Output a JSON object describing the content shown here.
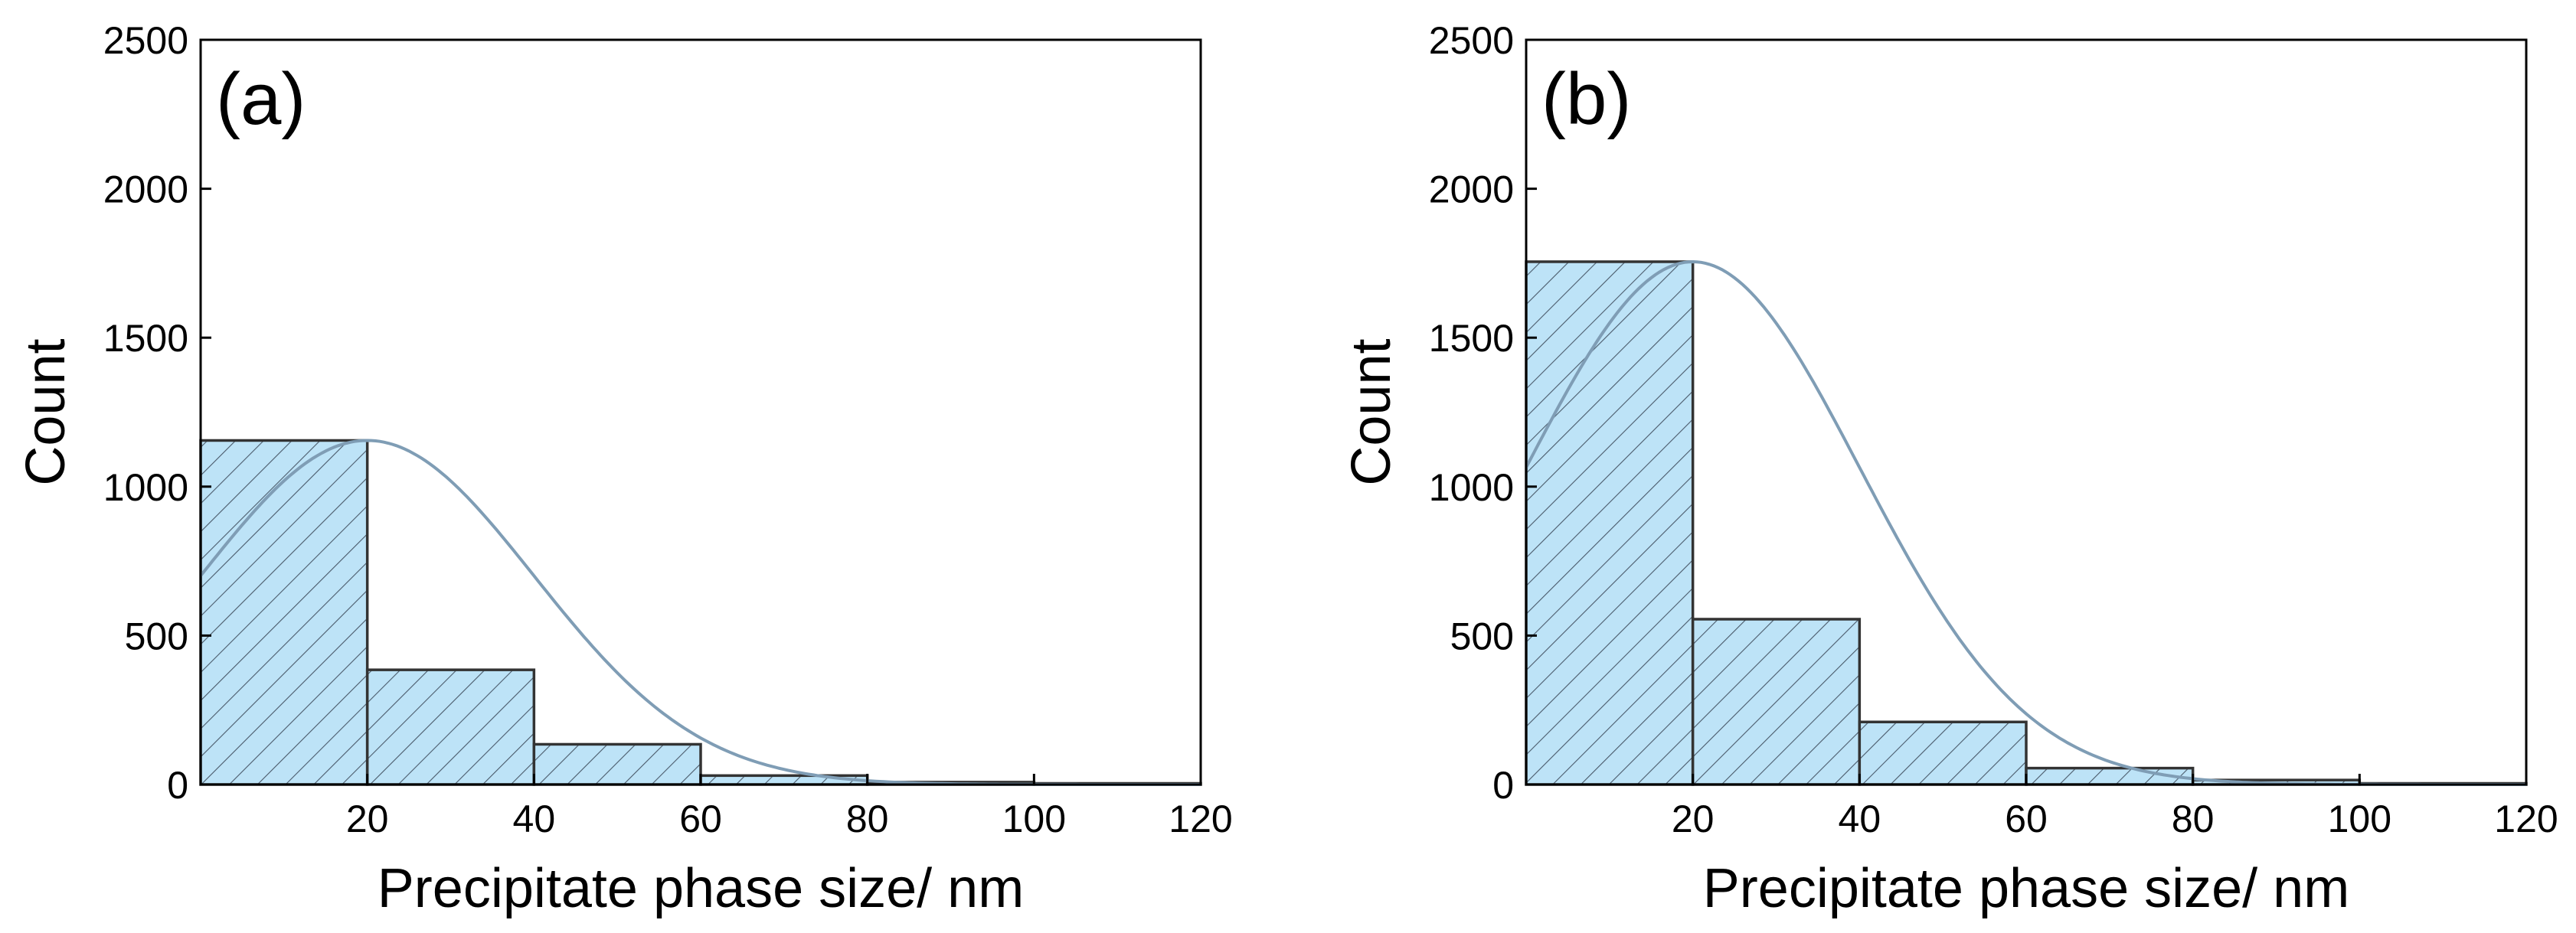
{
  "chart_data": [
    {
      "type": "bar",
      "panel_label": "(a)",
      "xlabel": "Precipitate phase size/ nm",
      "ylabel": "Count",
      "xlim": [
        0,
        120
      ],
      "ylim": [
        0,
        2500
      ],
      "xticks": [
        20,
        40,
        60,
        80,
        100,
        120
      ],
      "yticks": [
        0,
        500,
        1000,
        1500,
        2000,
        2500
      ],
      "bins": [
        {
          "x0": 0,
          "x1": 20,
          "value": 1155
        },
        {
          "x0": 20,
          "x1": 40,
          "value": 385
        },
        {
          "x0": 40,
          "x1": 60,
          "value": 135
        },
        {
          "x0": 60,
          "x1": 80,
          "value": 30
        },
        {
          "x0": 80,
          "x1": 100,
          "value": 8
        },
        {
          "x0": 100,
          "x1": 120,
          "value": 2
        }
      ],
      "fit_curve": {
        "type": "gaussian",
        "peak_x": 20,
        "peak_y": 1155,
        "sigma": 20
      },
      "grid": false,
      "colors": {
        "bar_fill": "#bde3f7",
        "bar_edge": "#333333",
        "hatch": "#4a5a6a",
        "curve": "#7f9db5"
      }
    },
    {
      "type": "bar",
      "panel_label": "(b)",
      "xlabel": "Precipitate phase size/ nm",
      "ylabel": "Count",
      "xlim": [
        0,
        120
      ],
      "ylim": [
        0,
        2500
      ],
      "xticks": [
        20,
        40,
        60,
        80,
        100,
        120
      ],
      "yticks": [
        0,
        500,
        1000,
        1500,
        2000,
        2500
      ],
      "bins": [
        {
          "x0": 0,
          "x1": 20,
          "value": 1755
        },
        {
          "x0": 20,
          "x1": 40,
          "value": 555
        },
        {
          "x0": 40,
          "x1": 60,
          "value": 210
        },
        {
          "x0": 60,
          "x1": 80,
          "value": 55
        },
        {
          "x0": 80,
          "x1": 100,
          "value": 15
        },
        {
          "x0": 100,
          "x1": 120,
          "value": 3
        }
      ],
      "fit_curve": {
        "type": "gaussian",
        "peak_x": 20,
        "peak_y": 1755,
        "sigma": 20
      },
      "grid": false,
      "colors": {
        "bar_fill": "#bde3f7",
        "bar_edge": "#333333",
        "hatch": "#4a5a6a",
        "curve": "#7f9db5"
      }
    }
  ]
}
